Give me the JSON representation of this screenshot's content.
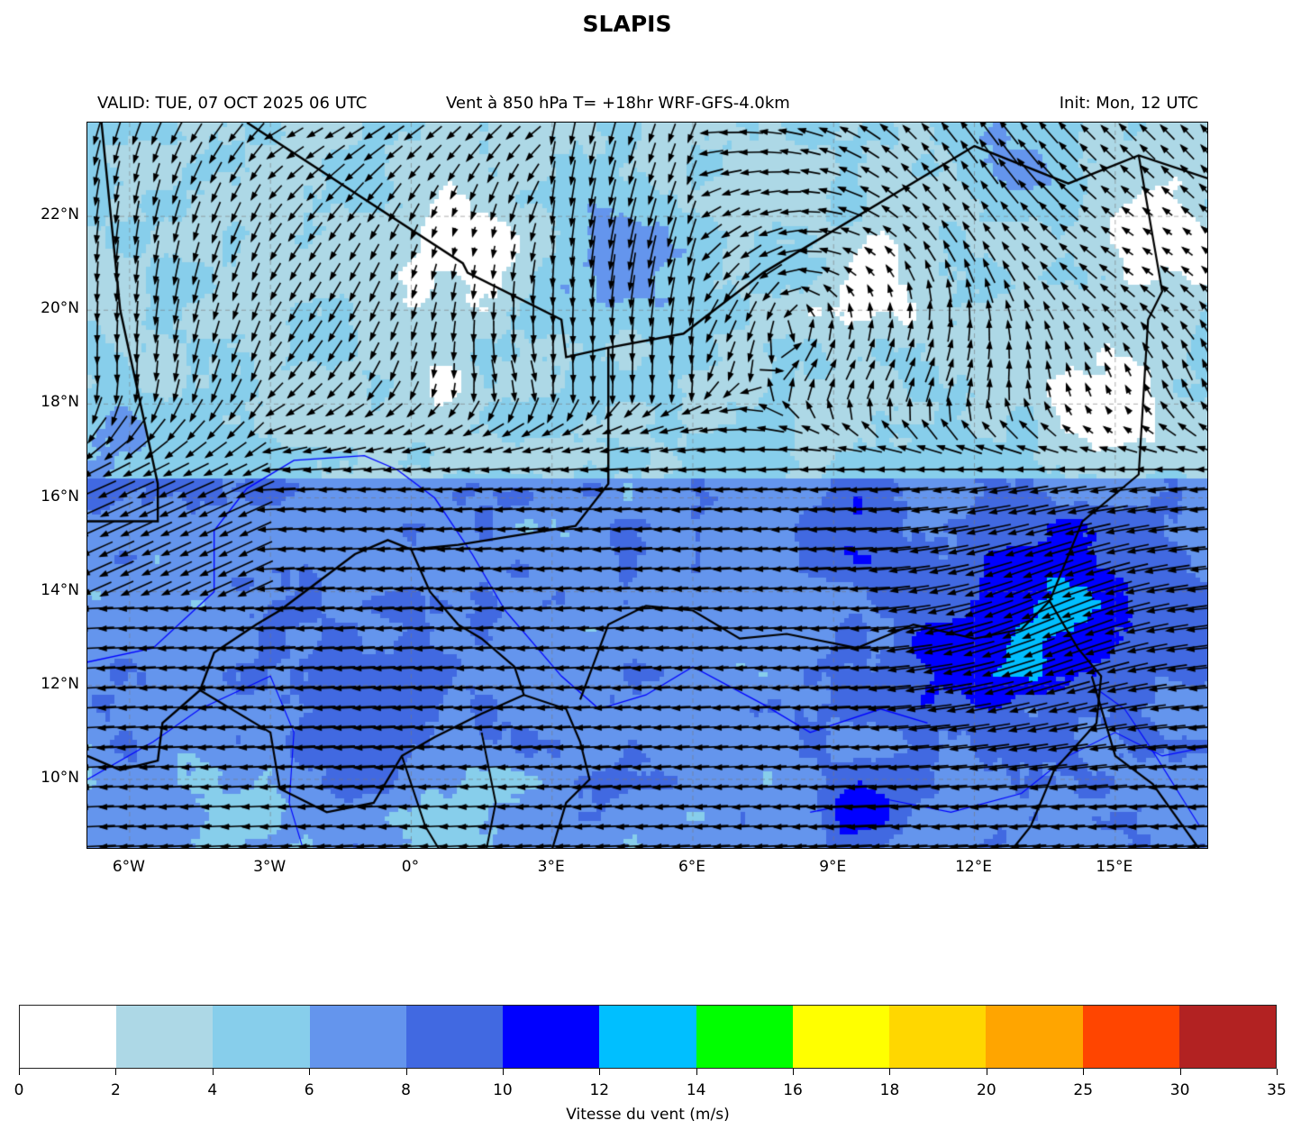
{
  "title": "SLAPIS",
  "header": {
    "valid": "VALID: TUE, 07 OCT 2025 06 UTC",
    "field": "Vent à 850 hPa T= +18hr  WRF-GFS-4.0km",
    "init": "Init: Mon, 12 UTC"
  },
  "map": {
    "extent_lon": [
      -6.9,
      17.0
    ],
    "extent_lat": [
      8.5,
      24.0
    ],
    "lon_ticks": [
      {
        "value": -6,
        "label": "6°W"
      },
      {
        "value": -3,
        "label": "3°W"
      },
      {
        "value": 0,
        "label": "0°"
      },
      {
        "value": 3,
        "label": "3°E"
      },
      {
        "value": 6,
        "label": "6°E"
      },
      {
        "value": 9,
        "label": "9°E"
      },
      {
        "value": 12,
        "label": "12°E"
      },
      {
        "value": 15,
        "label": "15°E"
      }
    ],
    "lat_ticks": [
      {
        "value": 10,
        "label": "10°N"
      },
      {
        "value": 12,
        "label": "12°N"
      },
      {
        "value": 14,
        "label": "14°N"
      },
      {
        "value": 16,
        "label": "16°N"
      },
      {
        "value": 18,
        "label": "18°N"
      },
      {
        "value": 20,
        "label": "20°N"
      },
      {
        "value": 22,
        "label": "22°N"
      }
    ],
    "gridlines": true,
    "border_color": "#000000",
    "river_color": "#0000ff"
  },
  "colorbar": {
    "label": "Vitesse du vent (m/s)",
    "bounds": [
      "0",
      "2",
      "4",
      "6",
      "8",
      "10",
      "12",
      "14",
      "16",
      "18",
      "20",
      "25",
      "30",
      "35"
    ],
    "colors": [
      "#ffffff",
      "#add8e6",
      "#87ceeb",
      "#6495ed",
      "#4169e1",
      "#0000ff",
      "#00bfff",
      "#00ff00",
      "#ffff00",
      "#ffd700",
      "#ffa500",
      "#ff4500",
      "#b22222"
    ]
  }
}
